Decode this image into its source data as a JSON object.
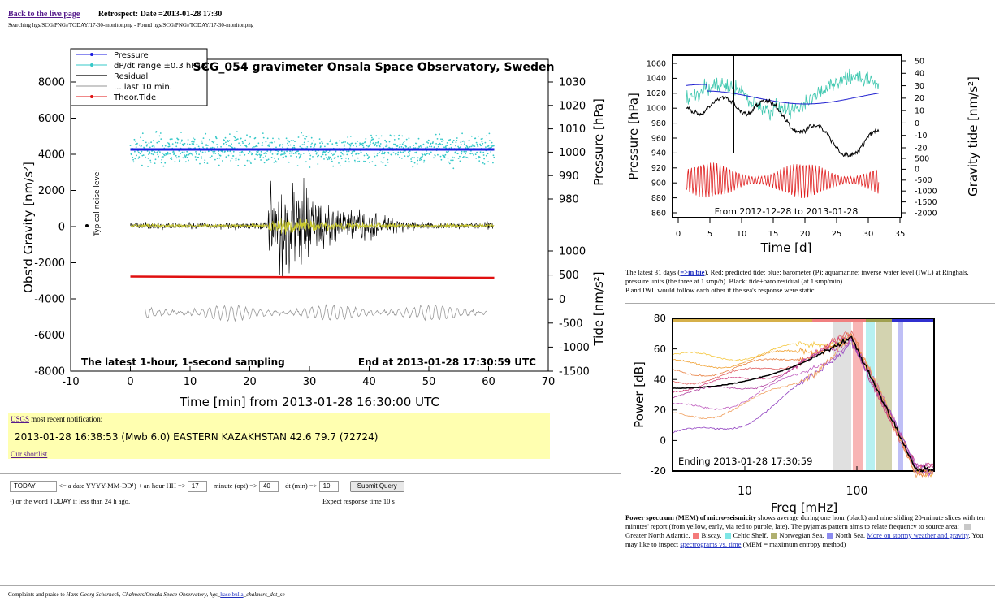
{
  "header": {
    "back_link": "Back to the live page",
    "retrospect": "Retrospect: Date =2013-01-28 17:30",
    "search_line": "Searching hgs/SCG/PNG//TODAY/17-30-monitor.png - Found hgs/SCG/PNG//TODAY/17-30-monitor.png"
  },
  "main_chart": {
    "title": "SCG_054 gravimeter Onsala Space Observatory, Sweden",
    "legend": [
      "Pressure",
      "dP/dt range ±0.3 hPa/s",
      "Residual",
      "... last 10 min.",
      "Theor.Tide"
    ],
    "y_label": "Obs'd Gravity [nm/s²]",
    "y2_label": "Pressure [hPa]",
    "y3_label": "Tide [nm/s²]",
    "x_label": "Time [min] from 2013-01-28 16:30:00 UTC",
    "noise_note": "Typical noise level",
    "footer_left": "The latest 1-hour, 1-second sampling",
    "footer_right": "End at 2013-01-28 17:30:59 UTC",
    "xticks": [
      -10,
      0,
      10,
      20,
      30,
      40,
      50,
      60,
      70
    ],
    "yticks": [
      -8000,
      -6000,
      -4000,
      -2000,
      0,
      2000,
      4000,
      6000,
      8000
    ],
    "y2ticks": [
      980,
      990,
      1000,
      1010,
      1020,
      1030
    ],
    "y3ticks": [
      -1500,
      -1000,
      -500,
      0,
      500,
      1000
    ]
  },
  "usgs": {
    "link": "USGS",
    "label": "most recent notification:",
    "event": "2013-01-28 16:38:53 (Mwb 6.0) EASTERN KAZAKHSTAN 42.6 79.7 (72724)",
    "shortlist": "Our shortlist"
  },
  "form": {
    "date_value": "TODAY",
    "date_hint": "<= a date YYYY-MM-DD¹) + an hour HH =>",
    "hour_value": "17",
    "minute_label": "minute (opt) =>",
    "minute_value": "40",
    "dt_label": "dt (min) =>",
    "dt_value": "10",
    "submit": "Submit Query",
    "footnote_mark": "¹)",
    "footnote_pre": "or the word",
    "footnote_word": "TODAY",
    "footnote_post": "if less than 24 h ago.",
    "response": "Expect response time 10 s"
  },
  "pressure_chart": {
    "y_label": "Pressure [hPa]",
    "y2_label": "Gravity tide [nm/s²]",
    "x_label": "Time [d]",
    "note": "From 2012-12-28 to 2013-01-28",
    "xticks": [
      0,
      5,
      10,
      15,
      20,
      25,
      30,
      35
    ],
    "yticks": [
      860,
      880,
      900,
      920,
      940,
      960,
      980,
      1000,
      1020,
      1040,
      1060
    ],
    "y2ticks": [
      -20,
      -10,
      0,
      10,
      20,
      30,
      40,
      50
    ],
    "y3ticks": [
      -2000,
      -1500,
      -1000,
      -500,
      0,
      500
    ]
  },
  "pressure_caption": {
    "pre": "The latest 31 days (",
    "link": "=>in bie",
    "post": "). Red: predicted tide; blue: barometer (P); aquamarine: inverse water level (IWL) at Ringhals, pressure units (the three at 1 smp/h). Black: tide+baro residual (at 1 smp/min).",
    "line2": "P and IWL would follow each other if the sea's response were static."
  },
  "spectrum_chart": {
    "y_label": "Power [dB]",
    "x_label": "Freq [mHz]",
    "note": "Ending 2013-01-28 17:30:59",
    "xticks": [
      10,
      100
    ],
    "yticks": [
      -20,
      0,
      20,
      40,
      60,
      80
    ]
  },
  "spectrum_caption": {
    "bold": "Power spectrum (MEM) of micro-seismicity",
    "text": " shows average during one hour (black) and nine sliding 20-minute slices with ten minutes' report (from yellow, early, via red to purple, late). The pyjamas pattern aims to relate frequency to source area: ",
    "areas": [
      "Greater North Atlantic,",
      "Biscay,",
      "Celtic Shelf,",
      "Norwegian Sea,",
      "North Sea."
    ],
    "link1": "More on stormy weather and gravity",
    "mid": ". You may like to inspect ",
    "link2": "spectrograms vs. time",
    "end": " (MEM = maximum entropy method)"
  },
  "footer": {
    "pre": "Complaints and praise to ",
    "author": "Hans-Georg Scherneck, Chalmers/Onsala Space Observatory, hgs_",
    "link": "kaseibulla",
    "post": "_chalmers_dot_se"
  }
}
